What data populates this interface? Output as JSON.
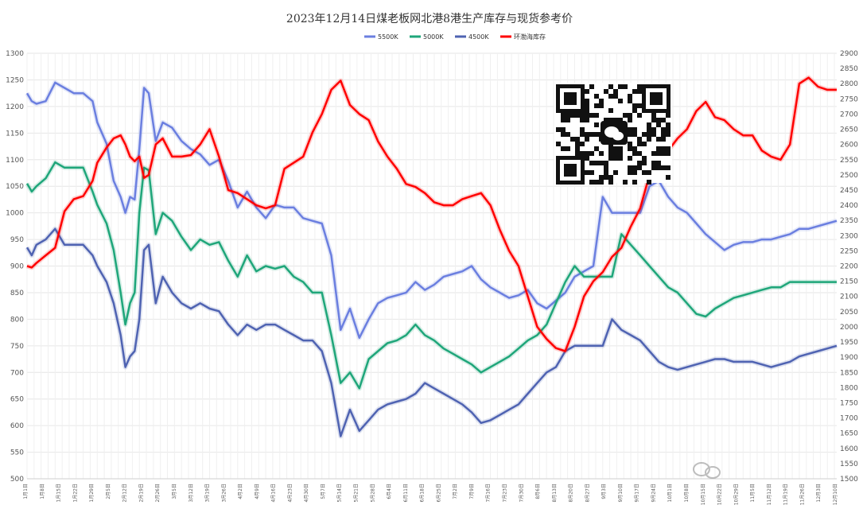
{
  "chart_data": {
    "type": "line",
    "title": "2023年12月14日煤老板网北港8港生产库存与现货参考价",
    "ylim": [
      500,
      1300
    ],
    "ylim_right": [
      1500,
      2900
    ],
    "yticks_left": [
      "500",
      "550",
      "600",
      "650",
      "700",
      "750",
      "800",
      "850",
      "900",
      "950",
      "1000",
      "1050",
      "1100",
      "1150",
      "1200",
      "1250",
      "1300"
    ],
    "yticks_right": [
      "1500",
      "1550",
      "1600",
      "1650",
      "1700",
      "1750",
      "1800",
      "1850",
      "1900",
      "1950",
      "2000",
      "2050",
      "2100",
      "2150",
      "2200",
      "2250",
      "2300",
      "2350",
      "2400",
      "2450",
      "2500",
      "2550",
      "2600",
      "2650",
      "2700",
      "2750",
      "2800",
      "2850",
      "2900"
    ],
    "x_labels": [
      "1月1日",
      "1月8日",
      "1月15日",
      "1月22日",
      "1月29日",
      "2月5日",
      "2月12日",
      "2月19日",
      "2月26日",
      "3月5日",
      "3月12日",
      "3月19日",
      "3月26日",
      "4月2日",
      "4月9日",
      "4月16日",
      "4月23日",
      "4月30日",
      "5月7日",
      "5月14日",
      "5月21日",
      "5月28日",
      "6月4日",
      "6月11日",
      "6月18日",
      "6月25日",
      "7月2日",
      "7月9日",
      "7月16日",
      "7月23日",
      "7月30日",
      "8月6日",
      "8月13日",
      "8月20日",
      "8月27日",
      "9月3日",
      "9月10日",
      "9月17日",
      "9月24日",
      "10月1日",
      "10月8日",
      "10月15日",
      "10月22日",
      "10月29日",
      "11月5日",
      "11月12日",
      "11月19日",
      "11月26日",
      "12月3日",
      "12月10日"
    ],
    "legend_position": "top-center",
    "grid": true,
    "series": [
      {
        "name": "5500K",
        "axis": "left",
        "color": "#6b7fe0",
        "x": [
          0,
          2,
          4,
          8,
          12,
          16,
          20,
          24,
          28,
          30,
          34,
          37,
          40,
          42,
          44,
          46,
          48,
          50,
          52,
          55,
          58,
          62,
          66,
          70,
          74,
          78,
          82,
          86,
          90,
          94,
          98,
          102,
          106,
          110,
          114,
          118,
          122,
          126,
          130,
          134,
          138,
          142,
          146,
          150,
          154,
          158,
          162,
          166,
          170,
          174,
          178,
          182,
          186,
          190,
          194,
          198,
          202,
          206,
          210,
          214,
          218,
          222,
          226,
          230,
          234,
          238,
          242,
          246,
          250,
          254,
          258,
          262,
          266,
          270,
          274,
          278,
          282,
          286,
          290,
          294,
          298,
          302,
          306,
          310,
          314,
          318,
          322,
          326,
          330,
          334,
          338,
          342,
          346
        ],
        "values": [
          1225,
          1210,
          1205,
          1210,
          1245,
          1235,
          1225,
          1225,
          1210,
          1170,
          1130,
          1060,
          1030,
          1000,
          1030,
          1025,
          1120,
          1235,
          1225,
          1135,
          1170,
          1160,
          1135,
          1120,
          1110,
          1090,
          1100,
          1060,
          1010,
          1040,
          1010,
          990,
          1015,
          1010,
          1010,
          990,
          985,
          980,
          920,
          780,
          820,
          765,
          800,
          830,
          840,
          845,
          850,
          870,
          855,
          865,
          880,
          885,
          890,
          900,
          875,
          860,
          850,
          840,
          845,
          855,
          830,
          820,
          835,
          850,
          880,
          890,
          900,
          1030,
          1000,
          1000,
          1000,
          1000,
          1050,
          1060,
          1030,
          1010,
          1000,
          980,
          960,
          945,
          930,
          940,
          945,
          945,
          950,
          950,
          955,
          960,
          970,
          970,
          975,
          980,
          985
        ]
      },
      {
        "name": "5000K",
        "axis": "left",
        "color": "#1fa67a",
        "x": [
          0,
          2,
          4,
          8,
          12,
          16,
          20,
          24,
          28,
          30,
          34,
          37,
          40,
          42,
          44,
          46,
          48,
          50,
          52,
          55,
          58,
          62,
          66,
          70,
          74,
          78,
          82,
          86,
          90,
          94,
          98,
          102,
          106,
          110,
          114,
          118,
          122,
          126,
          130,
          134,
          138,
          142,
          146,
          150,
          154,
          158,
          162,
          166,
          170,
          174,
          178,
          182,
          186,
          190,
          194,
          198,
          202,
          206,
          210,
          214,
          218,
          222,
          226,
          230,
          234,
          238,
          242,
          246,
          250,
          254,
          258,
          262,
          266,
          270,
          274,
          278,
          282,
          286,
          290,
          294,
          298,
          302,
          306,
          310,
          314,
          318,
          322,
          326,
          330,
          334,
          338,
          342,
          346
        ],
        "values": [
          1055,
          1040,
          1050,
          1065,
          1095,
          1085,
          1085,
          1085,
          1040,
          1015,
          980,
          930,
          850,
          790,
          830,
          850,
          1000,
          1085,
          1080,
          960,
          1000,
          985,
          955,
          930,
          950,
          940,
          945,
          910,
          880,
          920,
          890,
          900,
          895,
          900,
          880,
          870,
          850,
          850,
          770,
          680,
          700,
          670,
          725,
          740,
          755,
          760,
          770,
          790,
          770,
          760,
          745,
          735,
          725,
          715,
          700,
          710,
          720,
          730,
          745,
          760,
          770,
          790,
          830,
          870,
          900,
          880,
          880,
          880,
          880,
          960,
          940,
          920,
          900,
          880,
          860,
          850,
          830,
          810,
          805,
          820,
          830,
          840,
          845,
          850,
          855,
          860,
          860,
          870,
          870,
          870,
          870,
          870,
          870
        ]
      },
      {
        "name": "4500K",
        "axis": "left",
        "color": "#4f63b2",
        "x": [
          0,
          2,
          4,
          8,
          12,
          16,
          20,
          24,
          28,
          30,
          34,
          37,
          40,
          42,
          44,
          46,
          48,
          50,
          52,
          55,
          58,
          62,
          66,
          70,
          74,
          78,
          82,
          86,
          90,
          94,
          98,
          102,
          106,
          110,
          114,
          118,
          122,
          126,
          130,
          134,
          138,
          142,
          146,
          150,
          154,
          158,
          162,
          166,
          170,
          174,
          178,
          182,
          186,
          190,
          194,
          198,
          202,
          206,
          210,
          214,
          218,
          222,
          226,
          230,
          234,
          238,
          242,
          246,
          250,
          254,
          258,
          262,
          266,
          270,
          274,
          278,
          282,
          286,
          290,
          294,
          298,
          302,
          306,
          310,
          314,
          318,
          322,
          326,
          330,
          334,
          338,
          342,
          346
        ],
        "values": [
          935,
          920,
          940,
          950,
          970,
          940,
          940,
          940,
          920,
          900,
          870,
          830,
          770,
          710,
          730,
          740,
          800,
          930,
          940,
          830,
          880,
          850,
          830,
          820,
          830,
          820,
          815,
          790,
          770,
          790,
          780,
          790,
          790,
          780,
          770,
          760,
          760,
          740,
          680,
          580,
          630,
          590,
          610,
          630,
          640,
          645,
          650,
          660,
          680,
          670,
          660,
          650,
          640,
          625,
          605,
          610,
          620,
          630,
          640,
          660,
          680,
          700,
          710,
          740,
          750,
          750,
          750,
          750,
          800,
          780,
          770,
          760,
          740,
          720,
          710,
          705,
          710,
          715,
          720,
          725,
          725,
          720,
          720,
          720,
          715,
          710,
          715,
          720,
          730,
          735,
          740,
          745,
          750
        ]
      },
      {
        "name": "环渤海库存",
        "axis": "right",
        "color": "#ff0000",
        "x": [
          0,
          2,
          4,
          8,
          12,
          16,
          20,
          24,
          28,
          30,
          34,
          37,
          40,
          42,
          44,
          46,
          48,
          50,
          52,
          55,
          58,
          62,
          66,
          70,
          74,
          78,
          82,
          86,
          90,
          94,
          98,
          102,
          106,
          110,
          114,
          118,
          122,
          126,
          130,
          134,
          138,
          142,
          146,
          150,
          154,
          158,
          162,
          166,
          170,
          174,
          178,
          182,
          186,
          190,
          194,
          198,
          202,
          206,
          210,
          214,
          218,
          222,
          226,
          230,
          234,
          238,
          242,
          246,
          250,
          254,
          258,
          262,
          266,
          270,
          274,
          278,
          282,
          286,
          290,
          294,
          298,
          302,
          306,
          310,
          314,
          318,
          322,
          326,
          330,
          334,
          338,
          342,
          346
        ],
        "values": [
          2200,
          2195,
          2210,
          2235,
          2260,
          2380,
          2420,
          2430,
          2480,
          2540,
          2590,
          2620,
          2630,
          2600,
          2560,
          2545,
          2560,
          2490,
          2500,
          2600,
          2620,
          2560,
          2560,
          2565,
          2600,
          2650,
          2560,
          2450,
          2440,
          2420,
          2400,
          2390,
          2400,
          2520,
          2540,
          2560,
          2640,
          2700,
          2780,
          2810,
          2730,
          2700,
          2680,
          2610,
          2560,
          2520,
          2470,
          2460,
          2440,
          2410,
          2400,
          2400,
          2420,
          2430,
          2440,
          2400,
          2320,
          2250,
          2200,
          2100,
          2000,
          1960,
          1930,
          1920,
          2000,
          2100,
          2150,
          2180,
          2230,
          2260,
          2330,
          2390,
          2500,
          2540,
          2580,
          2620,
          2650,
          2710,
          2740,
          2690,
          2680,
          2650,
          2630,
          2630,
          2580,
          2560,
          2550,
          2600,
          2800,
          2820,
          2790,
          2780,
          2780
        ]
      }
    ]
  }
}
